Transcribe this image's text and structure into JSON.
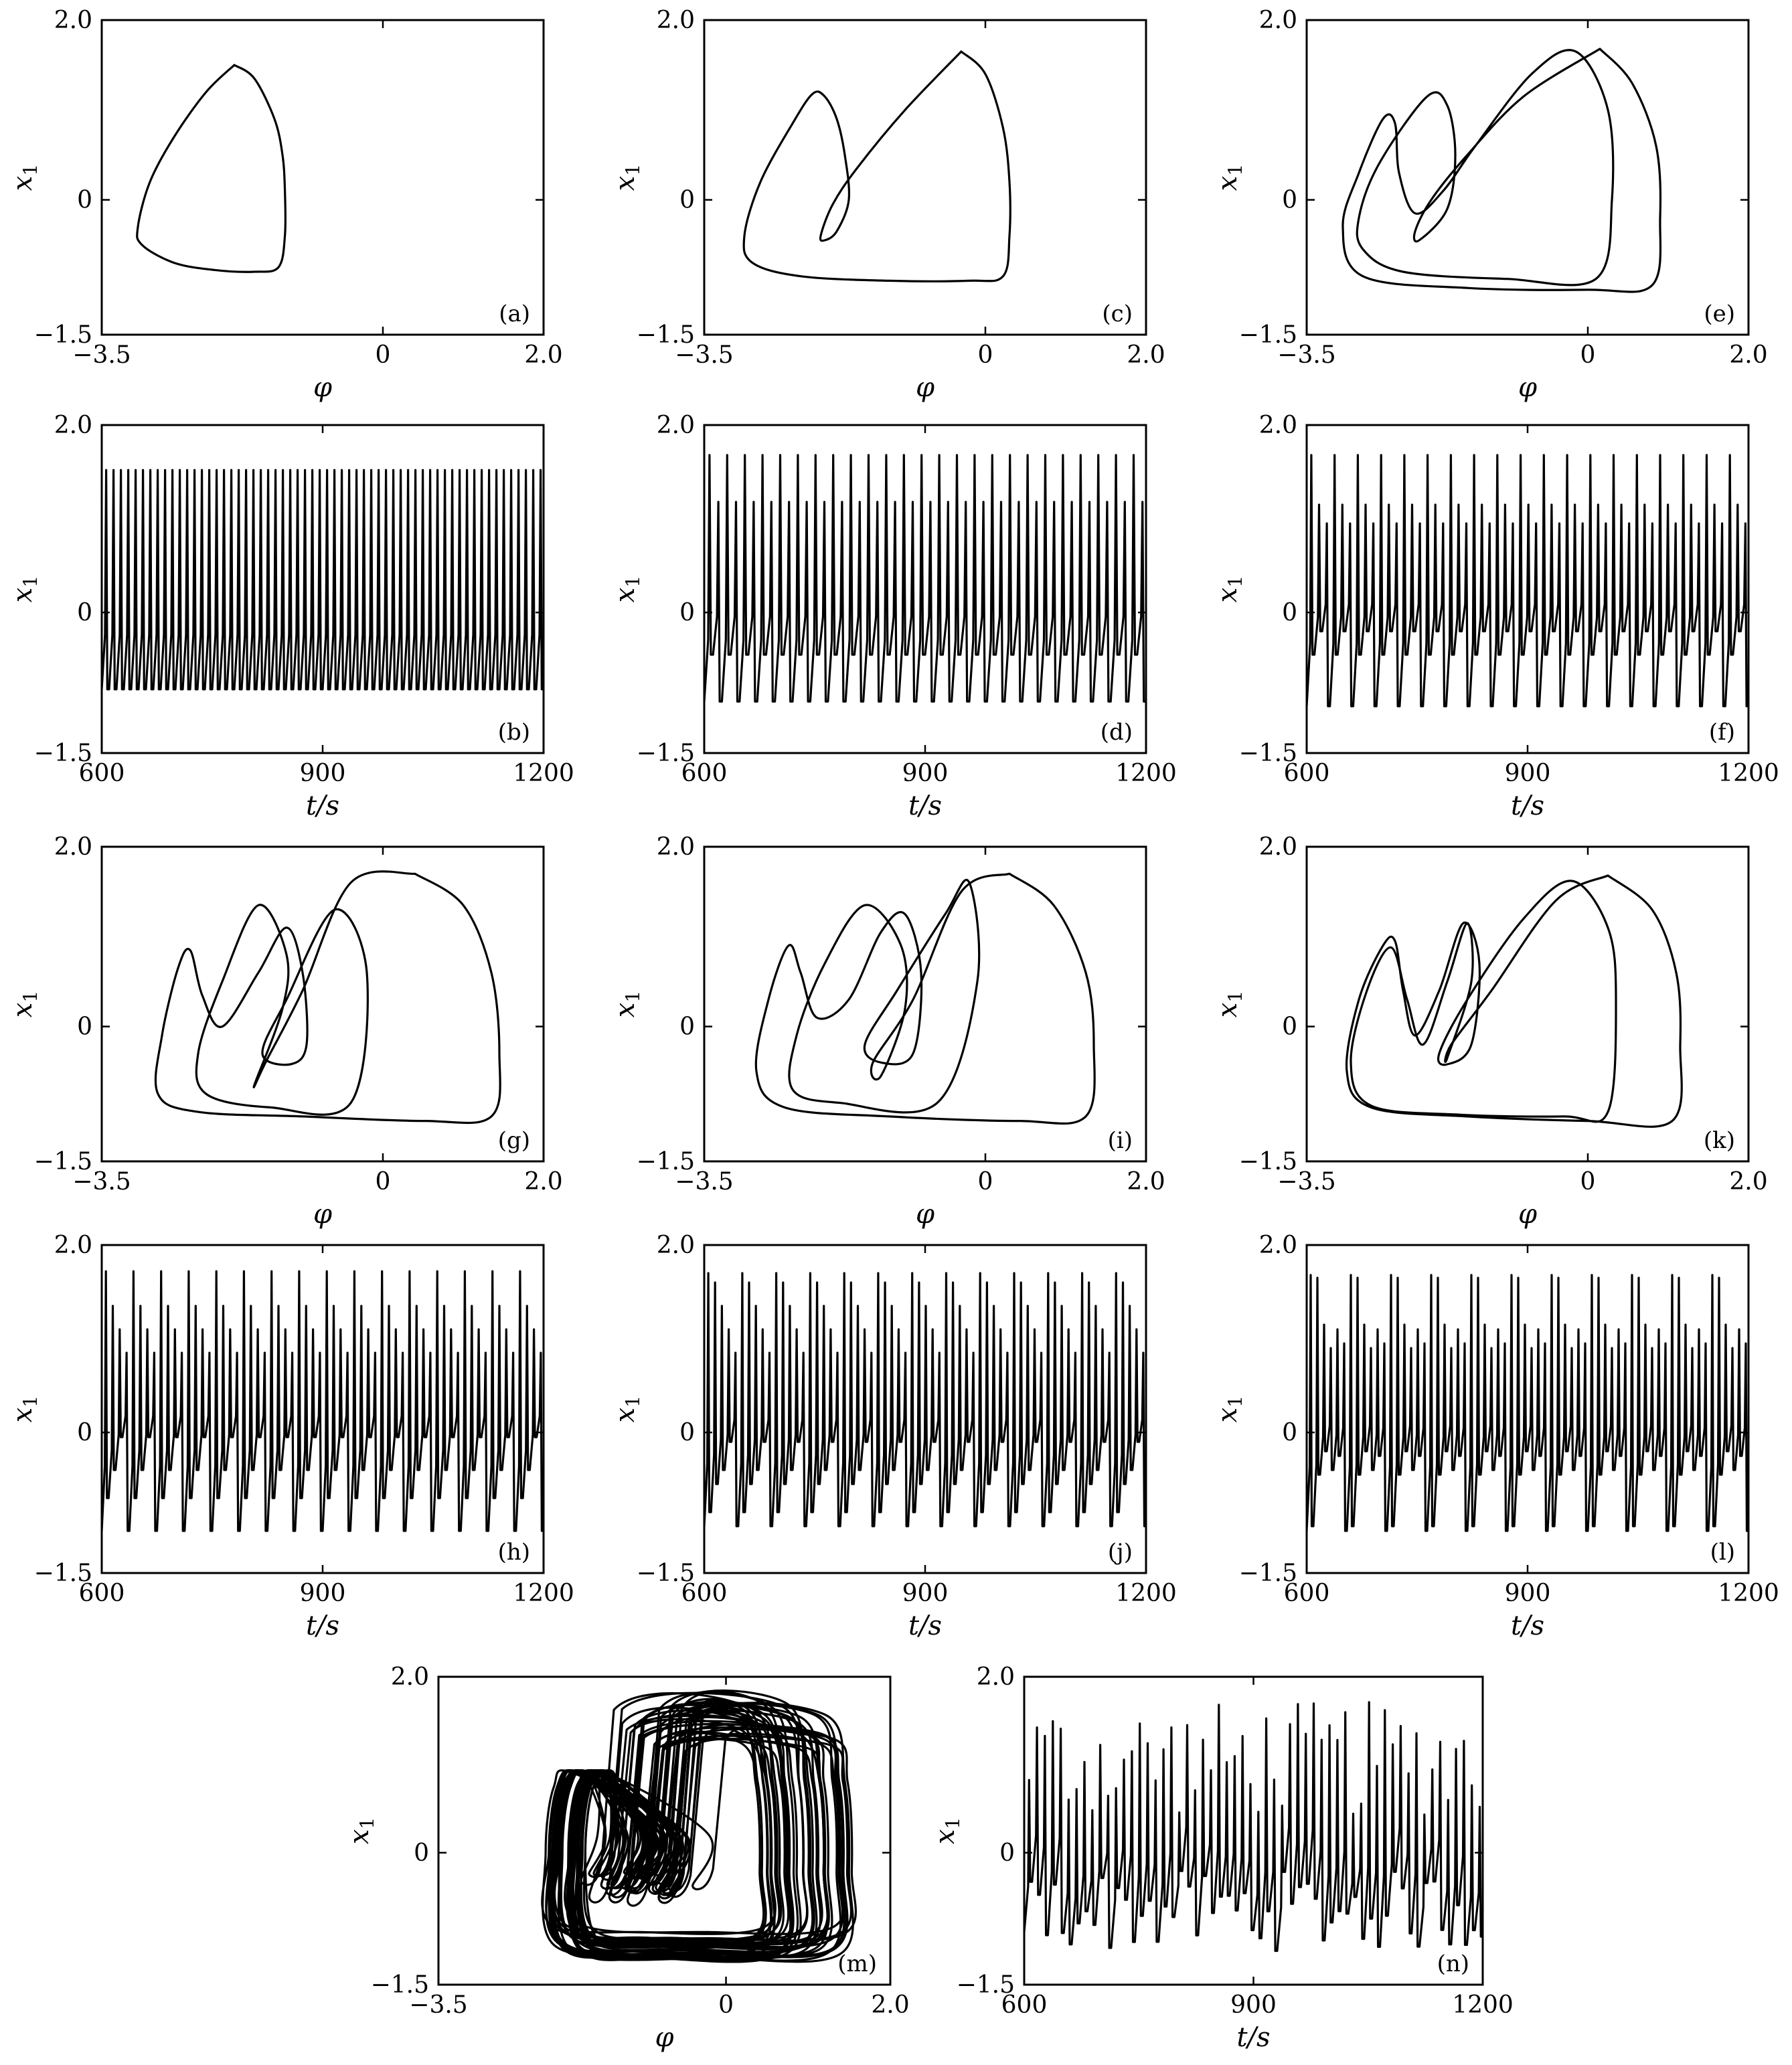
{
  "figure": {
    "phase_xlabel": "φ",
    "time_xlabel": "t/s",
    "ylabel": "x1"
  },
  "chart_data": [
    {
      "panel": "(a)",
      "type": "line",
      "xlabel": "φ",
      "ylabel": "x1",
      "xlim": [
        -3.5,
        2.0
      ],
      "ylim": [
        -1.5,
        2.0
      ],
      "xticks": [
        "−3.5",
        "0",
        "2.0"
      ],
      "yticks": [
        "2.0",
        "0",
        "−1.5"
      ],
      "curve": "period-1 limit cycle",
      "x": [
        -1.85,
        -1.6,
        -1.35,
        -1.25,
        -1.22,
        -1.22,
        -1.3,
        -1.6,
        -2.1,
        -2.6,
        -3.0,
        -3.05,
        -2.9,
        -2.6,
        -2.2,
        -1.85
      ],
      "y": [
        1.5,
        1.35,
        0.9,
        0.5,
        0.1,
        -0.4,
        -0.75,
        -0.8,
        -0.78,
        -0.7,
        -0.5,
        -0.3,
        0.2,
        0.7,
        1.2,
        1.5
      ]
    },
    {
      "panel": "(b)",
      "type": "line",
      "xlabel": "t/s",
      "ylabel": "x1",
      "xlim": [
        600,
        1200
      ],
      "ylim": [
        -1.5,
        2.0
      ],
      "xticks": [
        "600",
        "900",
        "1200"
      ],
      "yticks": [
        "2.0",
        "0",
        "−1.5"
      ],
      "peaks_per_cycle": [
        1.52
      ],
      "troughs_per_cycle": [
        -0.82
      ],
      "cycles": 60
    },
    {
      "panel": "(c)",
      "type": "line",
      "xlabel": "φ",
      "ylabel": "x1",
      "xlim": [
        -3.5,
        2.0
      ],
      "ylim": [
        -1.5,
        2.0
      ],
      "xticks": [
        "−3.5",
        "0",
        "2.0"
      ],
      "yticks": [
        "2.0",
        "0",
        "−1.5"
      ],
      "curve": "period-2 limit cycle",
      "x": [
        -0.3,
        0.0,
        0.22,
        0.3,
        0.3,
        0.22,
        -0.2,
        -1.2,
        -2.3,
        -2.9,
        -3.0,
        -2.8,
        -2.4,
        -2.15,
        -2.0,
        -1.85,
        -1.75,
        -1.7,
        -1.85,
        -2.0,
        -2.05,
        -1.9,
        -1.6,
        -1.0,
        -0.3
      ],
      "y": [
        1.65,
        1.4,
        0.8,
        0.2,
        -0.4,
        -0.85,
        -0.9,
        -0.9,
        -0.85,
        -0.7,
        -0.4,
        0.2,
        0.85,
        1.18,
        1.15,
        0.9,
        0.5,
        0.0,
        -0.35,
        -0.45,
        -0.4,
        -0.05,
        0.35,
        1.0,
        1.65
      ]
    },
    {
      "panel": "(d)",
      "type": "line",
      "xlabel": "t/s",
      "ylabel": "x1",
      "xlim": [
        600,
        1200
      ],
      "ylim": [
        -1.5,
        2.0
      ],
      "xticks": [
        "600",
        "900",
        "1200"
      ],
      "yticks": [
        "2.0",
        "0",
        "−1.5"
      ],
      "peaks_per_cycle": [
        1.68,
        1.18
      ],
      "troughs_per_cycle": [
        -0.95,
        -0.45
      ],
      "cycles": 25
    },
    {
      "panel": "(e)",
      "type": "line",
      "xlabel": "φ",
      "ylabel": "x1",
      "xlim": [
        -3.5,
        2.0
      ],
      "ylim": [
        -1.5,
        2.0
      ],
      "xticks": [
        "−3.5",
        "0",
        "2.0"
      ],
      "yticks": [
        "2.0",
        "0",
        "−1.5"
      ],
      "curve": "period-3 limit cycle",
      "x": [
        0.15,
        0.55,
        0.85,
        0.9,
        0.8,
        0.0,
        -1.5,
        -2.8,
        -3.05,
        -2.85,
        -2.55,
        -2.4,
        -2.35,
        -2.15,
        -1.8,
        -1.4,
        -0.7,
        -0.15,
        0.25,
        0.3,
        0.1,
        -1.0,
        -2.3,
        -2.8,
        -2.85,
        -2.6,
        -2.0,
        -1.75,
        -1.65,
        -1.75,
        -2.1,
        -2.15,
        -1.95,
        -1.5,
        -0.8,
        0.15
      ],
      "y": [
        1.68,
        1.3,
        0.6,
        -0.2,
        -0.95,
        -1.0,
        -0.98,
        -0.85,
        -0.3,
        0.3,
        0.9,
        0.85,
        0.3,
        -0.15,
        0.1,
        0.6,
        1.4,
        1.65,
        1.0,
        0.0,
        -0.88,
        -0.88,
        -0.8,
        -0.55,
        -0.2,
        0.4,
        1.15,
        1.05,
        0.5,
        -0.1,
        -0.45,
        -0.35,
        0.0,
        0.5,
        1.15,
        1.68
      ]
    },
    {
      "panel": "(f)",
      "type": "line",
      "xlabel": "t/s",
      "ylabel": "x1",
      "xlim": [
        600,
        1200
      ],
      "ylim": [
        -1.5,
        2.0
      ],
      "xticks": [
        "600",
        "900",
        "1200"
      ],
      "yticks": [
        "2.0",
        "0",
        "−1.5"
      ],
      "peaks_per_cycle": [
        1.68,
        1.15,
        0.95
      ],
      "troughs_per_cycle": [
        -1.0,
        -0.45,
        -0.2
      ],
      "cycles": 19
    },
    {
      "panel": "(g)",
      "type": "line",
      "xlabel": "φ",
      "ylabel": "x1",
      "xlim": [
        -3.5,
        2.0
      ],
      "ylim": [
        -1.5,
        2.0
      ],
      "xticks": [
        "−3.5",
        "0",
        "2.0"
      ],
      "yticks": [
        "2.0",
        "0",
        "−1.5"
      ],
      "curve": "period-4 limit cycle",
      "x": [
        0.4,
        1.0,
        1.35,
        1.45,
        1.35,
        0.5,
        -1.0,
        -2.3,
        -2.8,
        -2.75,
        -2.55,
        -2.4,
        -2.25,
        -2.0,
        -1.55,
        -1.2,
        -1.0,
        -0.95,
        -1.15,
        -1.5,
        -1.2,
        -0.6,
        -0.2,
        -0.4,
        -1.4,
        -2.2,
        -2.3,
        -2.0,
        -1.55,
        -1.2,
        -1.25,
        -1.6,
        -1.45,
        -1.0,
        -0.4,
        0.4
      ],
      "y": [
        1.7,
        1.35,
        0.6,
        -0.3,
        -1.0,
        -1.05,
        -1.0,
        -0.95,
        -0.75,
        -0.1,
        0.65,
        0.85,
        0.35,
        0.0,
        0.6,
        1.1,
        0.6,
        -0.2,
        -0.42,
        -0.3,
        0.3,
        1.3,
        0.6,
        -0.85,
        -0.9,
        -0.75,
        -0.3,
        0.5,
        1.35,
        0.8,
        0.2,
        -0.65,
        -0.38,
        0.4,
        1.6,
        1.7
      ]
    },
    {
      "panel": "(h)",
      "type": "line",
      "xlabel": "t/s",
      "ylabel": "x1",
      "xlim": [
        600,
        1200
      ],
      "ylim": [
        -1.5,
        2.0
      ],
      "xticks": [
        "600",
        "900",
        "1200"
      ],
      "yticks": [
        "2.0",
        "0",
        "−1.5"
      ],
      "peaks_per_cycle": [
        1.72,
        1.35,
        1.1,
        0.85
      ],
      "troughs_per_cycle": [
        -1.05,
        -0.7,
        -0.4,
        -0.05
      ],
      "cycles": 16
    },
    {
      "panel": "(i)",
      "type": "line",
      "xlabel": "φ",
      "ylabel": "x1",
      "xlim": [
        -3.5,
        2.0
      ],
      "ylim": [
        -1.5,
        2.0
      ],
      "xticks": [
        "−3.5",
        "0",
        "2.0"
      ],
      "yticks": [
        "2.0",
        "0",
        "−1.5"
      ],
      "curve": "period-5 limit cycle",
      "x": [
        0.3,
        0.85,
        1.25,
        1.35,
        1.25,
        0.4,
        -1.2,
        -2.5,
        -2.85,
        -2.7,
        -2.45,
        -2.3,
        -2.1,
        -1.7,
        -1.3,
        -1.0,
        -0.8,
        -0.9,
        -1.3,
        -1.5,
        -1.1,
        -0.5,
        -0.2,
        -0.1,
        -0.6,
        -1.8,
        -2.4,
        -2.35,
        -2.0,
        -1.5,
        -1.05,
        -1.0,
        -1.3,
        -1.4,
        -0.9,
        -0.3,
        0.3
      ],
      "y": [
        1.7,
        1.35,
        0.6,
        -0.2,
        -1.0,
        -1.05,
        -1.0,
        -0.9,
        -0.5,
        0.3,
        0.9,
        0.6,
        0.1,
        0.3,
        1.05,
        1.25,
        0.6,
        -0.3,
        -0.4,
        -0.2,
        0.4,
        1.25,
        1.6,
        0.5,
        -0.85,
        -0.85,
        -0.7,
        -0.1,
        0.7,
        1.35,
        0.9,
        0.2,
        -0.55,
        -0.4,
        0.3,
        1.5,
        1.7
      ]
    },
    {
      "panel": "(j)",
      "type": "line",
      "xlabel": "t/s",
      "ylabel": "x1",
      "xlim": [
        600,
        1200
      ],
      "ylim": [
        -1.5,
        2.0
      ],
      "xticks": [
        "600",
        "900",
        "1200"
      ],
      "yticks": [
        "2.0",
        "0",
        "−1.5"
      ],
      "peaks_per_cycle": [
        1.7,
        1.6,
        1.35,
        1.1,
        0.85
      ],
      "troughs_per_cycle": [
        -1.0,
        -0.85,
        -0.55,
        -0.4,
        -0.1
      ],
      "cycles": 13
    },
    {
      "panel": "(k)",
      "type": "line",
      "xlabel": "φ",
      "ylabel": "x1",
      "xlim": [
        -3.5,
        2.0
      ],
      "ylim": [
        -1.5,
        2.0
      ],
      "xticks": [
        "−3.5",
        "0",
        "2.0"
      ],
      "yticks": [
        "2.0",
        "0",
        "−1.5"
      ],
      "curve": "period-6 limit cycle",
      "x": [
        0.25,
        0.8,
        1.1,
        1.15,
        1.05,
        0.0,
        -1.5,
        -2.7,
        -3.0,
        -2.85,
        -2.55,
        -2.4,
        -2.3,
        -2.15,
        -1.85,
        -1.55,
        -1.35,
        -1.45,
        -1.75,
        -1.85,
        -1.5,
        -0.8,
        -0.2,
        0.25,
        0.35,
        0.25,
        -0.3,
        -1.6,
        -2.7,
        -2.95,
        -2.75,
        -2.45,
        -2.25,
        -2.05,
        -1.75,
        -1.5,
        -1.45,
        -1.75,
        -1.7,
        -1.2,
        -0.4,
        0.25
      ],
      "y": [
        1.68,
        1.3,
        0.6,
        -0.2,
        -1.05,
        -1.05,
        -1.0,
        -0.9,
        -0.5,
        0.3,
        0.9,
        0.95,
        0.4,
        -0.1,
        0.4,
        1.15,
        0.7,
        -0.2,
        -0.42,
        -0.3,
        0.3,
        1.2,
        1.62,
        1.1,
        0.3,
        -0.95,
        -1.0,
        -0.98,
        -0.88,
        -0.4,
        0.4,
        0.88,
        0.3,
        -0.2,
        0.5,
        1.15,
        0.5,
        -0.35,
        -0.2,
        0.4,
        1.4,
        1.68
      ]
    },
    {
      "panel": "(l)",
      "type": "line",
      "xlabel": "t/s",
      "ylabel": "x1",
      "xlim": [
        600,
        1200
      ],
      "ylim": [
        -1.5,
        2.0
      ],
      "xticks": [
        "600",
        "900",
        "1200"
      ],
      "yticks": [
        "2.0",
        "0",
        "−1.5"
      ],
      "peaks_per_cycle": [
        1.68,
        1.65,
        1.15,
        0.9,
        1.1,
        0.95
      ],
      "troughs_per_cycle": [
        -1.05,
        -1.0,
        -0.45,
        -0.2,
        -0.4,
        -0.25
      ],
      "cycles": 11
    },
    {
      "panel": "(m)",
      "type": "line",
      "xlabel": "φ",
      "ylabel": "x1",
      "xlim": [
        -3.5,
        2.0
      ],
      "ylim": [
        -1.5,
        2.0
      ],
      "xticks": [
        "−3.5",
        "0",
        "2.0"
      ],
      "yticks": [
        "2.0",
        "0",
        "−1.5"
      ],
      "curve": "chaotic attractor",
      "x_range": [
        -2.25,
        1.5
      ],
      "y_range": [
        -1.15,
        1.72
      ]
    },
    {
      "panel": "(n)",
      "type": "line",
      "xlabel": "t/s",
      "ylabel": "x1",
      "xlim": [
        600,
        1200
      ],
      "ylim": [
        -1.5,
        2.0
      ],
      "xticks": [
        "600",
        "900",
        "1200"
      ],
      "yticks": [
        "2.0",
        "0",
        "−1.5"
      ],
      "curve": "chaotic time series",
      "peak_range": [
        0.4,
        1.72
      ],
      "trough_range": [
        -1.12,
        -0.2
      ]
    }
  ]
}
